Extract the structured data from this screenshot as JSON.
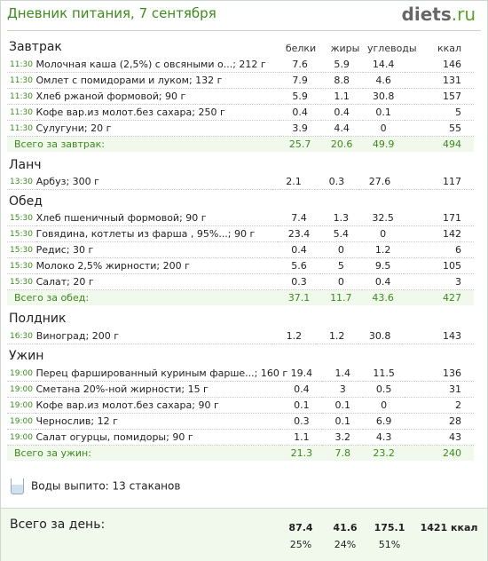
{
  "header": {
    "title": "Дневник питания, 7 сентября",
    "logo_main": "diets",
    "logo_suffix": ".ru"
  },
  "columns": {
    "protein": "белки",
    "fat": "жиры",
    "carbs": "углеводы",
    "kcal": "ккал"
  },
  "meals": {
    "breakfast": {
      "title": "Завтрак",
      "items": [
        {
          "time": "11:30",
          "name": "Молочная каша (2,5%) с овсяными о...; 212 г",
          "p": "7.6",
          "f": "5.9",
          "c": "14.4",
          "k": "146"
        },
        {
          "time": "11:30",
          "name": "Омлет с помидорами и луком; 132 г",
          "p": "7.9",
          "f": "8.8",
          "c": "4.6",
          "k": "131"
        },
        {
          "time": "11:30",
          "name": "Хлеб ржаной формовой; 90 г",
          "p": "5.9",
          "f": "1.1",
          "c": "30.8",
          "k": "157"
        },
        {
          "time": "11:30",
          "name": "Кофе вар.из молот.без сахара; 250 г",
          "p": "0.4",
          "f": "0.4",
          "c": "0.1",
          "k": "5"
        },
        {
          "time": "11:30",
          "name": "Сулугуни; 20 г",
          "p": "3.9",
          "f": "4.4",
          "c": "0",
          "k": "55"
        }
      ],
      "total": {
        "label": "Всего за завтрак:",
        "p": "25.7",
        "f": "20.6",
        "c": "49.9",
        "k": "494"
      }
    },
    "lunch": {
      "title": "Ланч",
      "items": [
        {
          "time": "13:30",
          "name": "Арбуз; 300 г",
          "p": "2.1",
          "f": "0.3",
          "c": "27.6",
          "k": "117"
        }
      ]
    },
    "dinner": {
      "title": "Обед",
      "items": [
        {
          "time": "15:30",
          "name": "Хлеб пшеничный формовой; 90 г",
          "p": "7.4",
          "f": "1.3",
          "c": "32.5",
          "k": "171"
        },
        {
          "time": "15:30",
          "name": "Говядина, котлеты из фарша , 95%...; 90 г",
          "p": "23.4",
          "f": "5.4",
          "c": "0",
          "k": "142"
        },
        {
          "time": "15:30",
          "name": "Редис; 30 г",
          "p": "0.4",
          "f": "0",
          "c": "1.2",
          "k": "6"
        },
        {
          "time": "15:30",
          "name": "Молоко 2,5% жирности; 200 г",
          "p": "5.6",
          "f": "5",
          "c": "9.5",
          "k": "105"
        },
        {
          "time": "15:30",
          "name": "Салат; 20 г",
          "p": "0.3",
          "f": "0",
          "c": "0.4",
          "k": "3"
        }
      ],
      "total": {
        "label": "Всего за обед:",
        "p": "37.1",
        "f": "11.7",
        "c": "43.6",
        "k": "427"
      }
    },
    "snack": {
      "title": "Полдник",
      "items": [
        {
          "time": "16:30",
          "name": "Виноград; 200 г",
          "p": "1.2",
          "f": "1.2",
          "c": "30.8",
          "k": "143"
        }
      ]
    },
    "supper": {
      "title": "Ужин",
      "items": [
        {
          "time": "19:00",
          "name": "Перец фаршированный куриным фарше...; 160 г",
          "p": "19.4",
          "f": "1.4",
          "c": "11.5",
          "k": "136"
        },
        {
          "time": "19:00",
          "name": "Сметана 20%-ной жирности; 15 г",
          "p": "0.4",
          "f": "3",
          "c": "0.5",
          "k": "31"
        },
        {
          "time": "19:00",
          "name": "Кофе вар.из молот.без сахара; 90 г",
          "p": "0.1",
          "f": "0.1",
          "c": "0",
          "k": "2"
        },
        {
          "time": "19:00",
          "name": "Чернослив; 12 г",
          "p": "0.3",
          "f": "0.1",
          "c": "6.9",
          "k": "28"
        },
        {
          "time": "19:00",
          "name": "Салат огурцы, помидоры; 90 г",
          "p": "1.1",
          "f": "3.2",
          "c": "4.3",
          "k": "43"
        }
      ],
      "total": {
        "label": "Всего за ужин:",
        "p": "21.3",
        "f": "7.8",
        "c": "23.2",
        "k": "240"
      }
    }
  },
  "water": {
    "text": "Воды выпито: 13 стаканов",
    "icon": "glass-icon"
  },
  "day_total": {
    "label": "Всего за день:",
    "p": "87.4",
    "f": "41.6",
    "c": "175.1",
    "k": "1421 ккал",
    "p_pct": "25%",
    "f_pct": "24%",
    "c_pct": "51%"
  },
  "colors": {
    "accent": "#3d8a1e",
    "total_bg": "#f1f8ec"
  }
}
